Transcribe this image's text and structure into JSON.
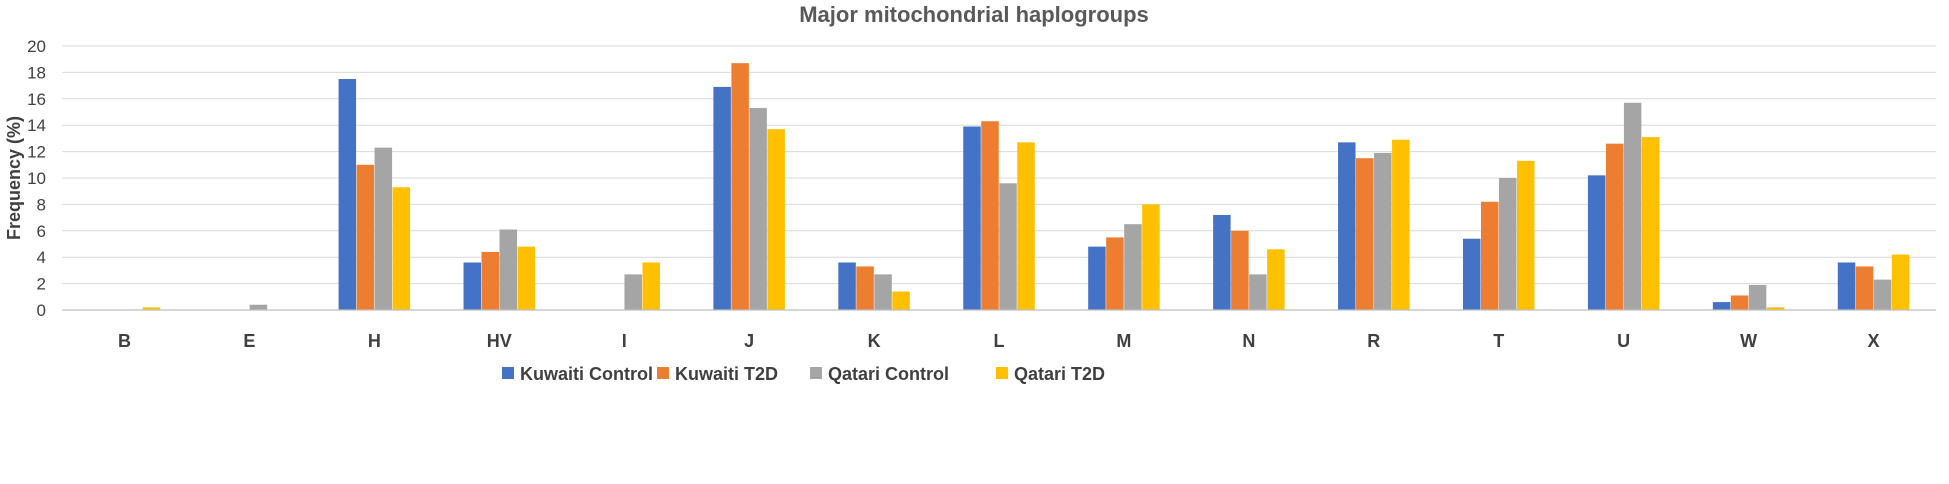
{
  "chart_data": {
    "type": "bar",
    "title": "Major mitochondrial haplogroups",
    "xlabel": "",
    "ylabel": "Frequency (%)",
    "ylim": [
      0,
      20
    ],
    "yticks": [
      "0",
      "2",
      "4",
      "6",
      "8",
      "10",
      "12",
      "14",
      "16",
      "18",
      "20"
    ],
    "grid": true,
    "legend_position": "bottom",
    "categories": [
      "B",
      "E",
      "H",
      "HV",
      "I",
      "J",
      "K",
      "L",
      "M",
      "N",
      "R",
      "T",
      "U",
      "W",
      "X"
    ],
    "series": [
      {
        "name": "Kuwaiti Control",
        "color": "#4472C4",
        "values": [
          0,
          0,
          17.5,
          3.6,
          0,
          16.9,
          3.6,
          13.9,
          4.8,
          7.2,
          12.7,
          5.4,
          10.2,
          0.6,
          3.6
        ]
      },
      {
        "name": "Kuwaiti T2D",
        "color": "#ED7D31",
        "values": [
          0,
          0,
          11.0,
          4.4,
          0,
          18.7,
          3.3,
          14.3,
          5.5,
          6.0,
          11.5,
          8.2,
          12.6,
          1.1,
          3.3
        ]
      },
      {
        "name": "Qatari Control",
        "color": "#A5A5A5",
        "values": [
          0,
          0.4,
          12.3,
          6.1,
          2.7,
          15.3,
          2.7,
          9.6,
          6.5,
          2.7,
          11.9,
          10.0,
          15.7,
          1.9,
          2.3
        ]
      },
      {
        "name": "Qatari T2D",
        "color": "#FFC000",
        "values": [
          0.2,
          0,
          9.3,
          4.8,
          3.6,
          13.7,
          1.4,
          12.7,
          8.0,
          4.6,
          12.9,
          11.3,
          13.1,
          0.2,
          4.2
        ]
      }
    ]
  }
}
